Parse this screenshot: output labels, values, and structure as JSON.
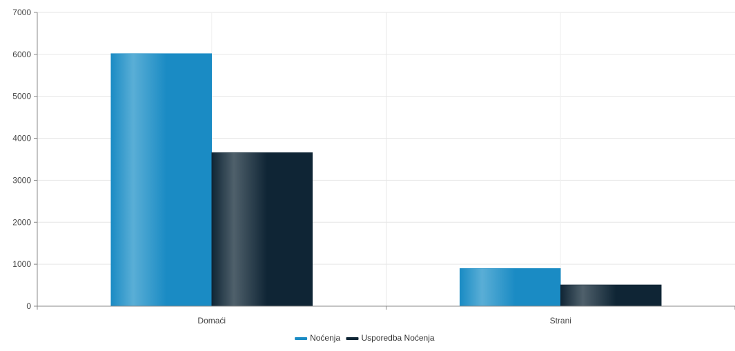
{
  "chart_data": {
    "type": "bar",
    "categories": [
      "Domaći",
      "Strani"
    ],
    "series": [
      {
        "name": "Noćenja",
        "values": [
          6020,
          900
        ],
        "color": "#1a8bc4",
        "highlight": "#5aaed6"
      },
      {
        "name": "Usporedba Noćenja",
        "values": [
          3660,
          510
        ],
        "color": "#0f2535",
        "highlight": "#4f606b"
      }
    ],
    "yticks": [
      0,
      1000,
      2000,
      3000,
      4000,
      5000,
      6000,
      7000
    ],
    "ylim": [
      0,
      7000
    ],
    "grid": true,
    "legend": "bottom-center"
  },
  "colors": {
    "grid": "#e6e6e6",
    "axis": "#888888"
  }
}
